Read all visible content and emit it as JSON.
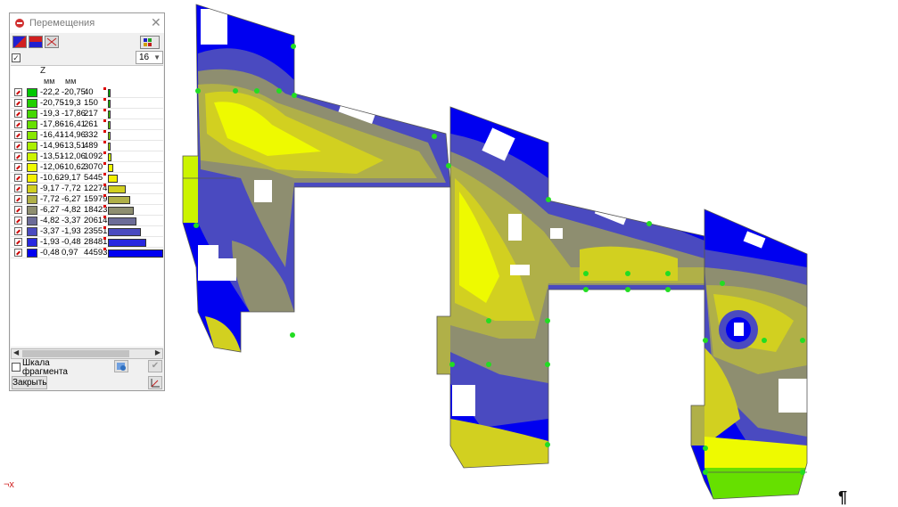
{
  "window": {
    "title": "Перемещения"
  },
  "toolbar": {
    "count_value": "16"
  },
  "table": {
    "header_axis": "Z",
    "unit_from": "мм",
    "unit_to": "мм",
    "rows": [
      {
        "from": "-22,2",
        "to": "-20,75",
        "count": "40",
        "color": "#00c800",
        "fraction": 0.02
      },
      {
        "from": "-20,75",
        "to": "-19,3",
        "count": "150",
        "color": "#22d000",
        "fraction": 0.03
      },
      {
        "from": "-19,3",
        "to": "-17,86",
        "count": "217",
        "color": "#44d800",
        "fraction": 0.03
      },
      {
        "from": "-17,86",
        "to": "-16,41",
        "count": "261",
        "color": "#66e000",
        "fraction": 0.03
      },
      {
        "from": "-16,41",
        "to": "-14,96",
        "count": "332",
        "color": "#88e800",
        "fraction": 0.04
      },
      {
        "from": "-14,96",
        "to": "-13,51",
        "count": "489",
        "color": "#aaf000",
        "fraction": 0.05
      },
      {
        "from": "-13,51",
        "to": "-12,06",
        "count": "1092",
        "color": "#ccf400",
        "fraction": 0.06
      },
      {
        "from": "-12,06",
        "to": "-10,62",
        "count": "3070",
        "color": "#eefa00",
        "fraction": 0.1
      },
      {
        "from": "-10,62",
        "to": "-9,17",
        "count": "5445",
        "color": "#f4f000",
        "fraction": 0.17
      },
      {
        "from": "-9,17",
        "to": "-7,72",
        "count": "12274",
        "color": "#d2d020",
        "fraction": 0.33
      },
      {
        "from": "-7,72",
        "to": "-6,27",
        "count": "15979",
        "color": "#b0b048",
        "fraction": 0.4
      },
      {
        "from": "-6,27",
        "to": "-4,82",
        "count": "18423",
        "color": "#8e8e70",
        "fraction": 0.47
      },
      {
        "from": "-4,82",
        "to": "-3,37",
        "count": "20614",
        "color": "#6c6c98",
        "fraction": 0.52
      },
      {
        "from": "-3,37",
        "to": "-1,93",
        "count": "23551",
        "color": "#4a4ac0",
        "fraction": 0.6
      },
      {
        "from": "-1,93",
        "to": "-0,48",
        "count": "28481",
        "color": "#2828e0",
        "fraction": 0.7
      },
      {
        "from": "-0,48",
        "to": "0,97",
        "count": "44593",
        "color": "#0000f0",
        "fraction": 1.0
      }
    ]
  },
  "footer": {
    "scale_label_line1": "Шкала",
    "scale_label_line2": "фрагмента",
    "close_label": "Закрыть"
  },
  "canvas": {
    "axis_label": "¬x",
    "mark": "¶"
  }
}
